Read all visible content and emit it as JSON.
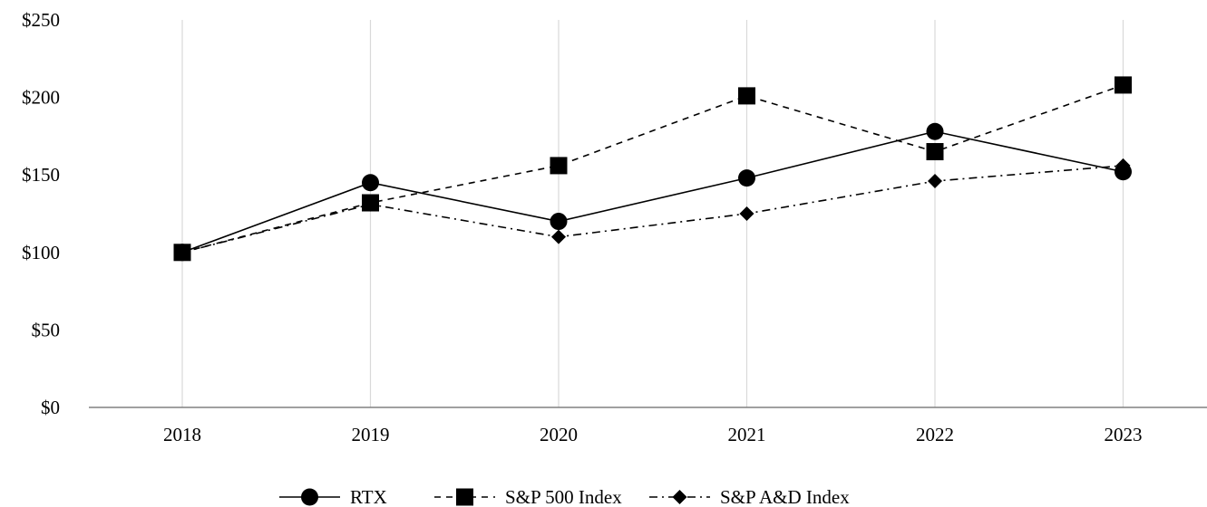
{
  "chart_data": {
    "type": "line",
    "title": "",
    "xlabel": "",
    "ylabel": "",
    "categories": [
      "2018",
      "2019",
      "2020",
      "2021",
      "2022",
      "2023"
    ],
    "ylim": [
      0,
      250
    ],
    "yticks": [
      0,
      50,
      100,
      150,
      200,
      250
    ],
    "ytick_labels": [
      "$0",
      "$50",
      "$100",
      "$150",
      "$200",
      "$250"
    ],
    "grid": "vertical",
    "legend_position": "bottom-center",
    "series": [
      {
        "name": "RTX",
        "values": [
          100,
          145,
          120,
          148,
          178,
          152
        ],
        "marker": "circle",
        "line": "solid",
        "color": "#000000"
      },
      {
        "name": "S&P 500 Index",
        "values": [
          100,
          132,
          156,
          201,
          165,
          208
        ],
        "marker": "square",
        "line": "dashed",
        "color": "#000000"
      },
      {
        "name": "S&P A&D Index",
        "values": [
          100,
          131,
          110,
          125,
          146,
          156
        ],
        "marker": "diamond",
        "line": "dash-dot",
        "color": "#000000"
      }
    ]
  }
}
